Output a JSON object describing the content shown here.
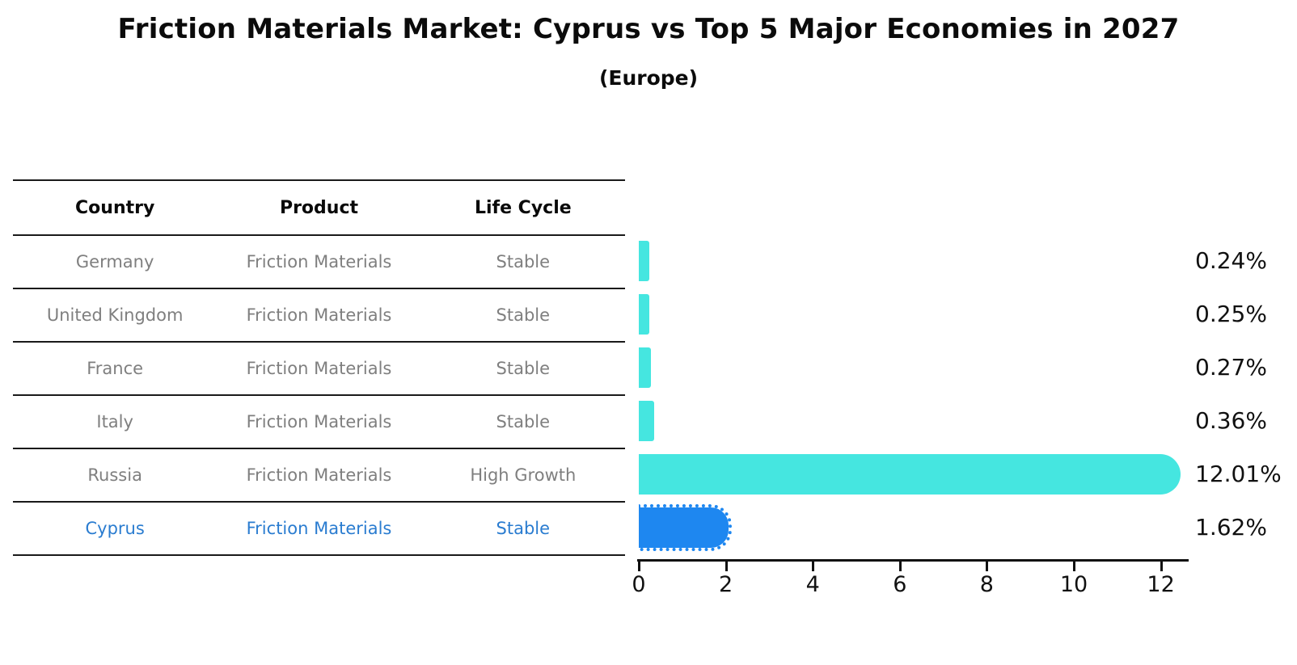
{
  "title": "Friction Materials Market: Cyprus vs Top 5 Major Economies in 2027",
  "subtitle": "(Europe)",
  "table": {
    "columns": [
      "Country",
      "Product",
      "Life Cycle"
    ],
    "rows": [
      {
        "country": "Germany",
        "product": "Friction Materials",
        "life_cycle": "Stable",
        "highlight": false
      },
      {
        "country": "United Kingdom",
        "product": "Friction Materials",
        "life_cycle": "Stable",
        "highlight": false
      },
      {
        "country": "France",
        "product": "Friction Materials",
        "life_cycle": "Stable",
        "highlight": false
      },
      {
        "country": "Italy",
        "product": "Friction Materials",
        "life_cycle": "Stable",
        "highlight": false
      },
      {
        "country": "Russia",
        "product": "Friction Materials",
        "life_cycle": "High Growth",
        "highlight": false
      },
      {
        "country": "Cyprus",
        "product": "Friction Materials",
        "life_cycle": "Stable",
        "highlight": true
      }
    ]
  },
  "chart_data": {
    "type": "bar",
    "orientation": "horizontal",
    "title": "Friction Materials Market: Cyprus vs Top 5 Major Economies in 2027",
    "subtitle": "(Europe)",
    "categories": [
      "Germany",
      "United Kingdom",
      "France",
      "Italy",
      "Russia",
      "Cyprus"
    ],
    "values": [
      0.24,
      0.25,
      0.27,
      0.36,
      12.01,
      1.62
    ],
    "value_labels": [
      "0.24%",
      "0.25%",
      "0.27%",
      "0.36%",
      "12.01%",
      "1.62%"
    ],
    "xlabel": "",
    "ylabel": "",
    "xlim": [
      0,
      12.5
    ],
    "x_ticks": [
      0,
      2,
      4,
      6,
      8,
      10,
      12
    ],
    "grid": false,
    "legend": false,
    "highlight_category": "Cyprus",
    "colors": {
      "default_bar": "#45e6e0",
      "highlight_bar": "#1e87f0",
      "highlight_text": "#2a7cd0",
      "table_text": "#7f7f7f",
      "header_text": "#0a0a0a",
      "axis_text": "#111111"
    }
  }
}
